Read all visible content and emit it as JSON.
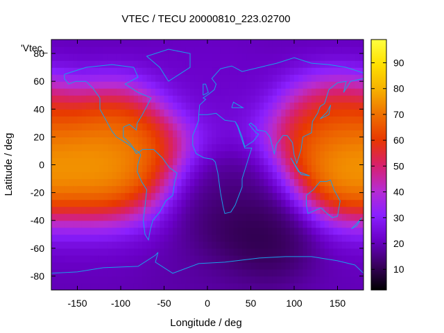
{
  "chart_data": {
    "type": "heatmap",
    "title": "VTEC / TECU 20000810_223.02700",
    "xlabel": "Longitude / deg",
    "ylabel": "Latitude / deg",
    "series_label": "'Vtec_",
    "xlim": [
      -180,
      180
    ],
    "ylim": [
      -90,
      90
    ],
    "xticks": [
      -150,
      -100,
      -50,
      0,
      50,
      100,
      150
    ],
    "yticks": [
      -80,
      -60,
      -40,
      -20,
      0,
      20,
      40,
      60,
      80
    ],
    "colorbar": {
      "range": [
        2,
        99
      ],
      "ticks": [
        10,
        20,
        30,
        40,
        50,
        60,
        70,
        80,
        90
      ],
      "palette": [
        "#000000",
        "#3a0060",
        "#6a00c8",
        "#8a20ff",
        "#b82cd0",
        "#d8206a",
        "#e83800",
        "#ee7000",
        "#f6b000",
        "#ffe000",
        "#ffff40"
      ]
    },
    "field_regions": [
      {
        "lon": -120,
        "lat": 0,
        "vtec": 88
      },
      {
        "lon": -100,
        "lat": 20,
        "vtec": 75
      },
      {
        "lon": 160,
        "lat": 0,
        "vtec": 90
      },
      {
        "lon": 150,
        "lat": 25,
        "vtec": 70
      },
      {
        "lon": 50,
        "lat": -50,
        "vtec": 5
      },
      {
        "lon": 30,
        "lat": -20,
        "vtec": 12
      },
      {
        "lon": 0,
        "lat": 60,
        "vtec": 22
      },
      {
        "lon": 0,
        "lat": -85,
        "vtec": 18
      }
    ],
    "overlay": "coastlines",
    "grid": false
  }
}
